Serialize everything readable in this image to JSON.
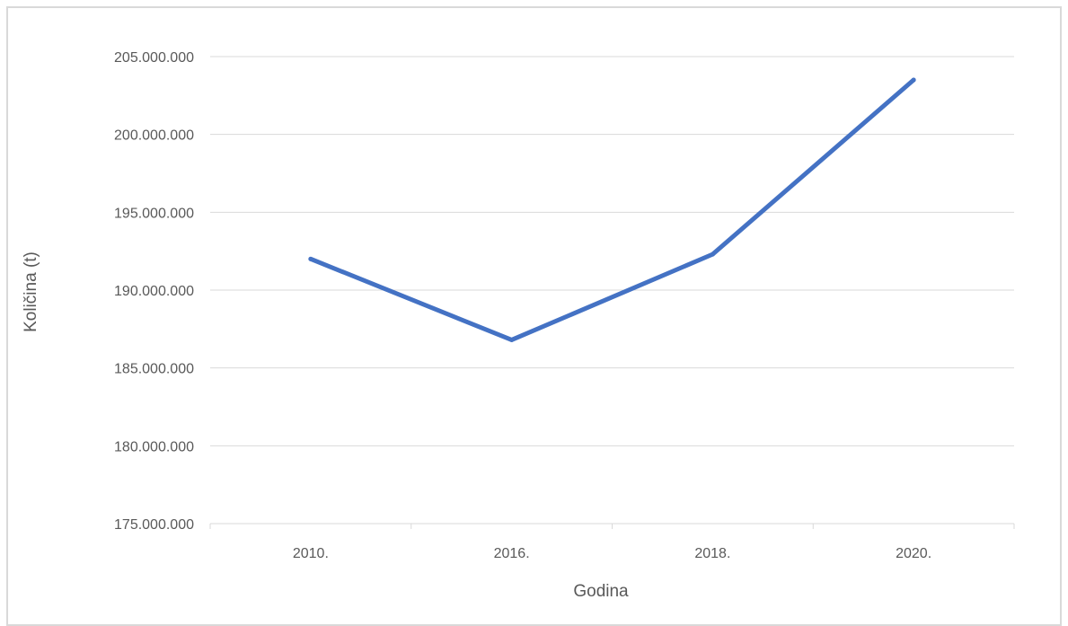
{
  "chart_data": {
    "type": "line",
    "title": "",
    "xlabel": "Godina",
    "ylabel": "Količina (t)",
    "categories": [
      "2010.",
      "2016.",
      "2018.",
      "2020."
    ],
    "series": [
      {
        "values": [
          192000000,
          186800000,
          192300000,
          203500000
        ],
        "color": "#4472c4"
      }
    ],
    "ylim": [
      175000000,
      205000000
    ],
    "y_ticks": [
      175000000,
      180000000,
      185000000,
      190000000,
      195000000,
      200000000,
      205000000
    ],
    "y_tick_labels": [
      "175.000.000",
      "180.000.000",
      "185.000.000",
      "190.000.000",
      "195.000.000",
      "200.000.000",
      "205.000.000"
    ],
    "grid": true,
    "legend": "none",
    "colors": {
      "line": "#4472c4",
      "grid": "#d9d9d9",
      "text": "#595959"
    }
  }
}
